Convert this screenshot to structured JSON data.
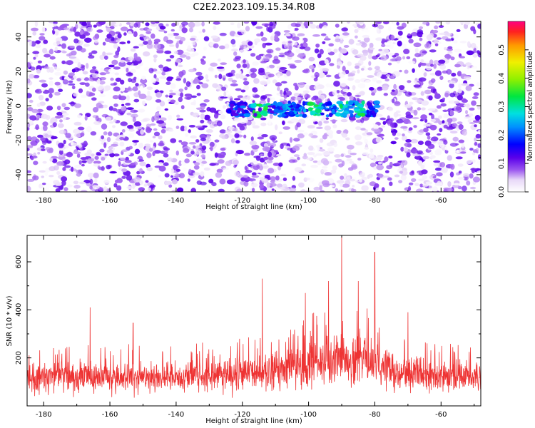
{
  "title": "C2E2.2023.109.15.34.R08",
  "colors": {
    "signal_line": "#ee3333",
    "frame": "#000000"
  },
  "chart_data": [
    {
      "type": "heatmap",
      "xlabel": "Height of straight line (km)",
      "ylabel": "Frequency (Hz)",
      "xlim": [
        -185,
        -48
      ],
      "ylim": [
        -50,
        49
      ],
      "xticks": [
        -180,
        -160,
        -140,
        -120,
        -100,
        -80,
        -60
      ],
      "yticks": [
        -40,
        -20,
        0,
        20,
        40
      ],
      "colorbar": {
        "label": "Normalized spectral amplitude",
        "range": [
          0.0,
          0.6
        ],
        "ticks": [
          0.0,
          0.1,
          0.2,
          0.3,
          0.4,
          0.5
        ]
      },
      "features": [
        {
          "description": "strong narrow band",
          "x_range": [
            -124,
            -79
          ],
          "frequency_range": [
            -6,
            2
          ],
          "peak_amplitude": 0.35
        },
        {
          "description": "weak speckle background",
          "x_range": [
            -185,
            -48
          ],
          "frequency_range": [
            -50,
            49
          ],
          "typical_amplitude": 0.1
        }
      ]
    },
    {
      "type": "line",
      "xlabel": "Height of straight line (km)",
      "ylabel": "SNR (10 * v/v)",
      "xlim": [
        -185,
        -48
      ],
      "ylim": [
        0,
        710
      ],
      "xticks": [
        -180,
        -160,
        -140,
        -120,
        -100,
        -80,
        -60
      ],
      "yticks": [
        200,
        400,
        600
      ],
      "envelope": [
        {
          "x": -185,
          "baseline": 120,
          "spread": 95
        },
        {
          "x": -160,
          "baseline": 120,
          "spread": 100
        },
        {
          "x": -140,
          "baseline": 125,
          "spread": 95
        },
        {
          "x": -125,
          "baseline": 130,
          "spread": 100
        },
        {
          "x": -110,
          "baseline": 150,
          "spread": 130
        },
        {
          "x": -100,
          "baseline": 175,
          "spread": 150
        },
        {
          "x": -90,
          "baseline": 200,
          "spread": 160
        },
        {
          "x": -82,
          "baseline": 190,
          "spread": 160
        },
        {
          "x": -75,
          "baseline": 150,
          "spread": 120
        },
        {
          "x": -60,
          "baseline": 125,
          "spread": 100
        },
        {
          "x": -48,
          "baseline": 120,
          "spread": 95
        }
      ],
      "peaks": [
        {
          "x": -166,
          "y": 410
        },
        {
          "x": -153,
          "y": 345
        },
        {
          "x": -114,
          "y": 530
        },
        {
          "x": -101,
          "y": 470
        },
        {
          "x": -94,
          "y": 520
        },
        {
          "x": -90,
          "y": 705
        },
        {
          "x": -85,
          "y": 520
        },
        {
          "x": -80,
          "y": 640
        },
        {
          "x": -70,
          "y": 390
        }
      ]
    }
  ]
}
